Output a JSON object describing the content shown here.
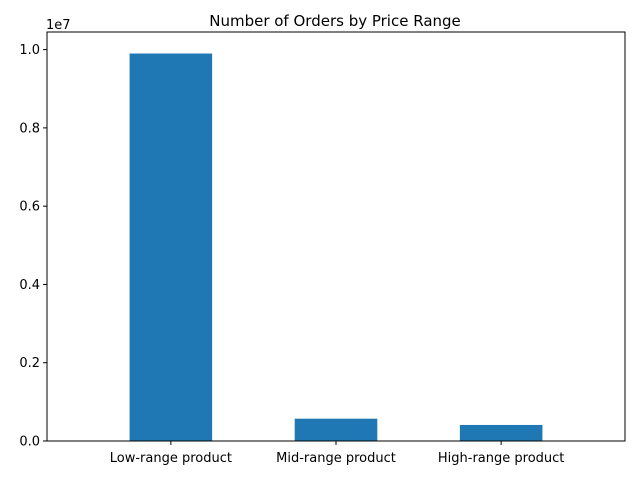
{
  "chart_data": {
    "type": "bar",
    "title": "Number of Orders by Price Range",
    "xlabel": "",
    "ylabel": "",
    "categories": [
      "Low-range product",
      "Mid-range product",
      "High-range product"
    ],
    "values": [
      9900000,
      570000,
      410000
    ],
    "ylim": [
      0,
      10450000
    ],
    "y_scale_label": "1e7",
    "y_ticks": [
      0,
      2000000,
      4000000,
      6000000,
      8000000,
      10000000
    ],
    "y_tick_labels": [
      "0.0",
      "0.2",
      "0.4",
      "0.6",
      "0.8",
      "1.0"
    ],
    "grid": false,
    "legend": "none",
    "bar_color": "#1f77b4"
  }
}
